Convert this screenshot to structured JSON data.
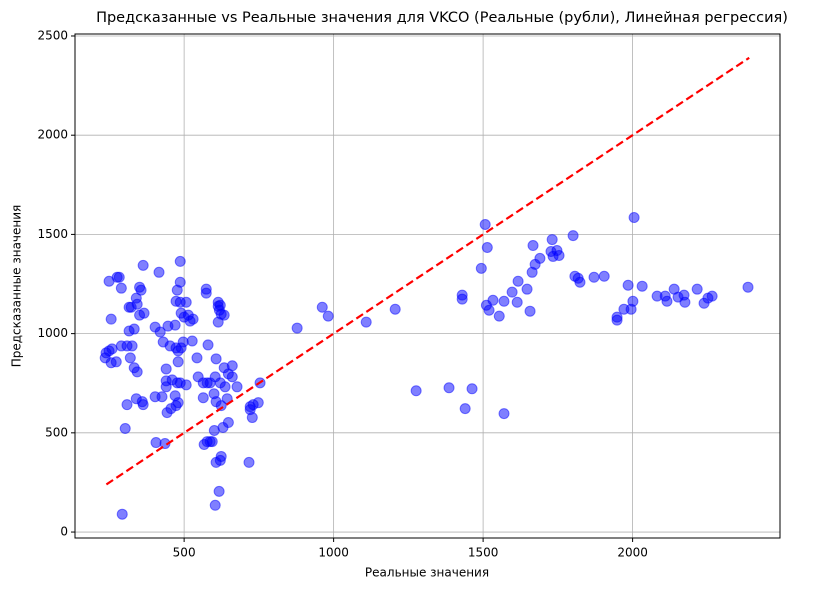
{
  "chart_data": {
    "type": "scatter",
    "title": "Предсказанные vs Реальные значения для VKCO (Реальные (рубли), Линейная регрессия)",
    "xlabel": "Реальные значения",
    "ylabel": "Предсказанные значения",
    "color": "#0000ff",
    "alpha": 0.5,
    "grid": true,
    "xlim": [
      135,
      2493
    ],
    "ylim": [
      -30,
      2510
    ],
    "xticks": [
      500,
      1000,
      1500,
      2000
    ],
    "yticks": [
      0,
      500,
      1000,
      1500,
      2000,
      2500
    ],
    "x": [
      249,
      283,
      276,
      290,
      256,
      239,
      249,
      256,
      259,
      236,
      273,
      290,
      309,
      326,
      320,
      333,
      343,
      333,
      316,
      323,
      316,
      343,
      340,
      351,
      356,
      363,
      351,
      366,
      309,
      340,
      360,
      363,
      303,
      293,
      416,
      403,
      420,
      446,
      470,
      430,
      453,
      473,
      480,
      440,
      440,
      440,
      460,
      480,
      490,
      497,
      487,
      477,
      507,
      470,
      480,
      473,
      456,
      443,
      406,
      436,
      426,
      403,
      487,
      487,
      477,
      473,
      487,
      507,
      490,
      500,
      514,
      520,
      530,
      527,
      574,
      574,
      614,
      614,
      621,
      618,
      634,
      624,
      614,
      543,
      580,
      607,
      547,
      564,
      577,
      587,
      604,
      621,
      637,
      661,
      661,
      634,
      677,
      644,
      624,
      600,
      564,
      607,
      648,
      648,
      577,
      594,
      587,
      567,
      601,
      624,
      621,
      607,
      617,
      604,
      630,
      748,
      754,
      731,
      721,
      721,
      728,
      717,
      878,
      962,
      982,
      1109,
      1206,
      1276,
      1386,
      1463,
      1440,
      1570,
      1430,
      1430,
      1507,
      1514,
      1494,
      1511,
      1520,
      1533,
      1554,
      1570,
      1597,
      1614,
      1617,
      1647,
      1657,
      1664,
      1674,
      1667,
      1690,
      1731,
      1727,
      1734,
      1747,
      1754,
      1801,
      1807,
      1818,
      1824,
      1871,
      1905,
      1948,
      1948,
      1971,
      1985,
      1995,
      2001,
      2005,
      2032,
      2082,
      2109,
      2115,
      2139,
      2152,
      2172,
      2175,
      2216,
      2239,
      2252,
      2266,
      2386
    ],
    "values": [
      1264,
      1284,
      1284,
      1229,
      1073,
      903,
      913,
      853,
      923,
      878,
      858,
      938,
      938,
      938,
      878,
      828,
      807,
      1023,
      1013,
      1133,
      1133,
      1148,
      1179,
      1234,
      1219,
      1344,
      1093,
      1103,
      642,
      672,
      657,
      642,
      522,
      90,
      1309,
      1033,
      1008,
      1038,
      1043,
      958,
      938,
      928,
      913,
      822,
      762,
      732,
      767,
      858,
      928,
      958,
      752,
      752,
      742,
      687,
      652,
      637,
      622,
      602,
      451,
      446,
      682,
      682,
      1364,
      1259,
      1219,
      1163,
      1158,
      1158,
      1103,
      1083,
      1093,
      1063,
      1073,
      963,
      1224,
      1204,
      1158,
      1138,
      1143,
      1118,
      1093,
      1098,
      1058,
      878,
      943,
      873,
      782,
      752,
      752,
      752,
      782,
      752,
      732,
      782,
      838,
      828,
      732,
      672,
      637,
      697,
      677,
      657,
      797,
      552,
      456,
      456,
      456,
      441,
      512,
      381,
      361,
      351,
      205,
      135,
      527,
      652,
      752,
      642,
      617,
      632,
      577,
      351,
      1028,
      1133,
      1088,
      1058,
      1123,
      712,
      727,
      722,
      622,
      597,
      1194,
      1174,
      1550,
      1434,
      1329,
      1143,
      1118,
      1168,
      1088,
      1163,
      1209,
      1158,
      1264,
      1224,
      1113,
      1309,
      1349,
      1444,
      1379,
      1474,
      1414,
      1389,
      1419,
      1394,
      1494,
      1289,
      1279,
      1259,
      1284,
      1289,
      1083,
      1068,
      1123,
      1244,
      1123,
      1163,
      1585,
      1239,
      1189,
      1189,
      1163,
      1224,
      1184,
      1194,
      1158,
      1224,
      1153,
      1179,
      1189,
      1234
    ],
    "lines": [
      {
        "x": [
          240,
          2390
        ],
        "values": [
          240,
          2390
        ],
        "color": "#ff0000",
        "style": "dashed"
      }
    ]
  }
}
